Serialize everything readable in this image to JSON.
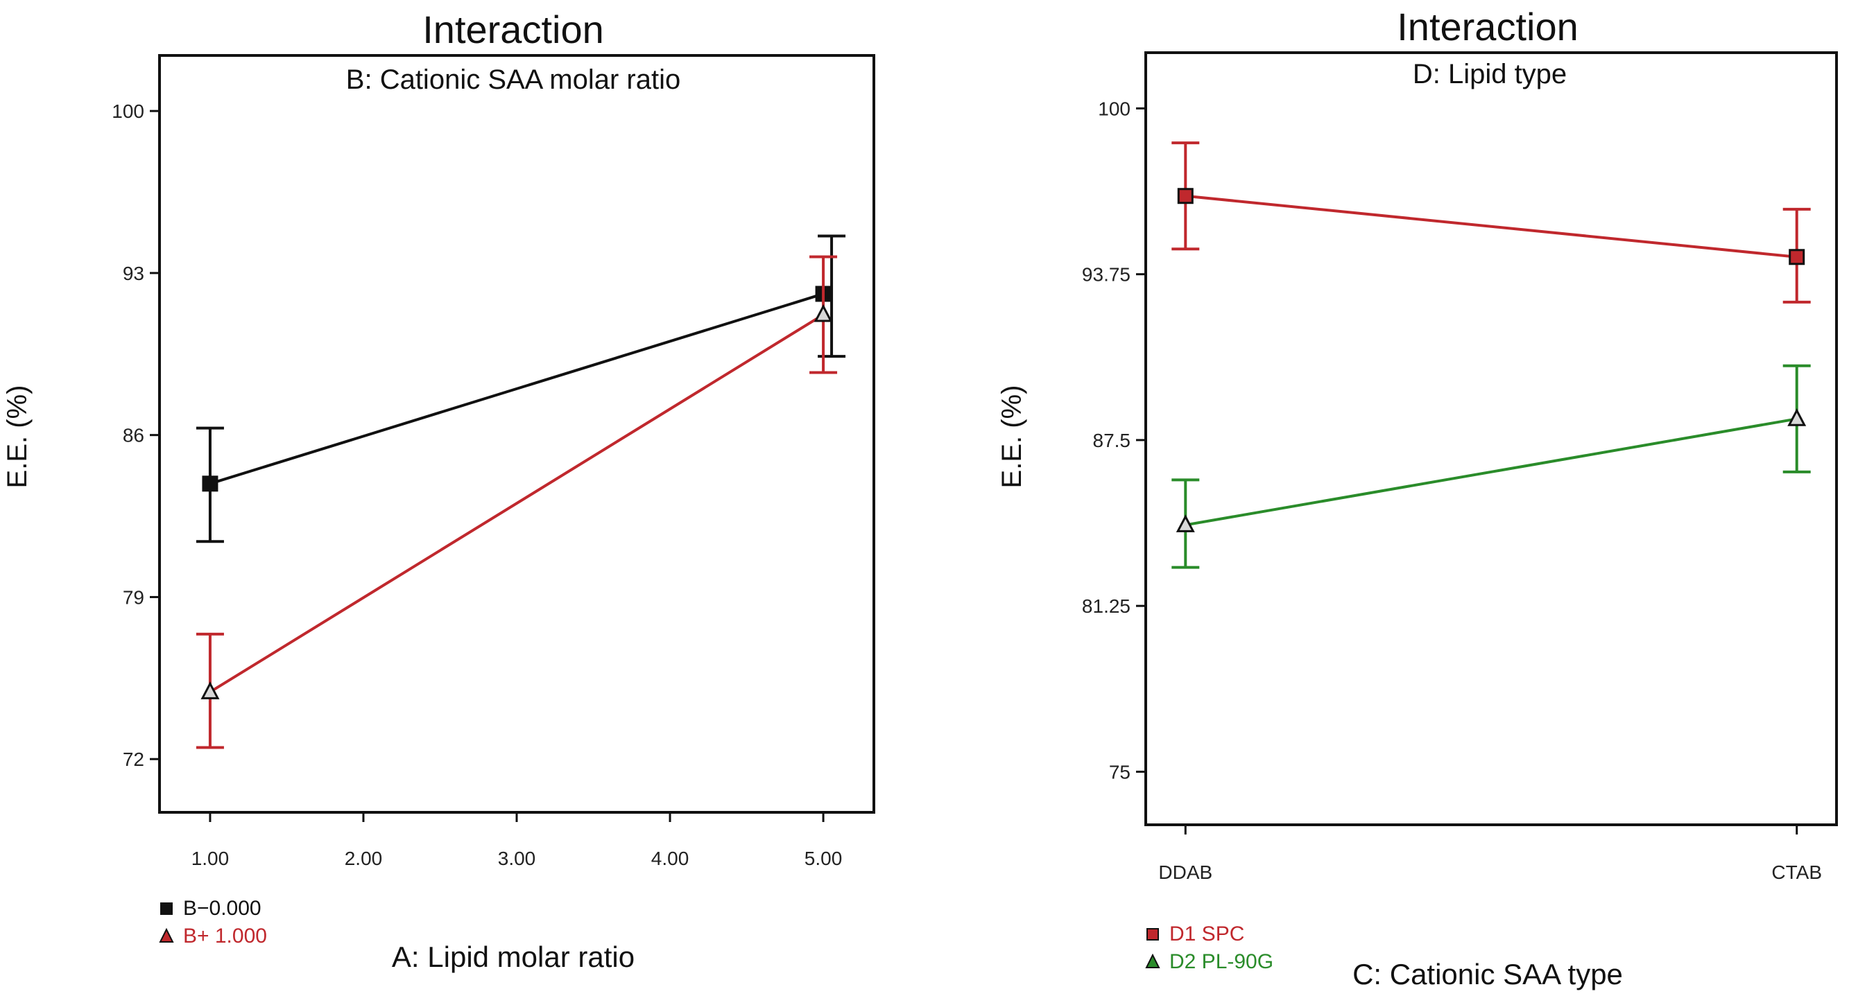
{
  "chart_data": [
    {
      "type": "line",
      "title": "Interaction",
      "subtitle": "B: Cationic SAA molar ratio",
      "xlabel": "A: Lipid molar ratio",
      "ylabel": "E.E. (%)",
      "x_ticks": [
        "1.00",
        "2.00",
        "3.00",
        "4.00",
        "5.00"
      ],
      "xlim": [
        0.67,
        5.33
      ],
      "y_ticks": [
        "100",
        "93",
        "86",
        "79",
        "72"
      ],
      "ylim": [
        69.7,
        102.4
      ],
      "series": [
        {
          "name": "B−0.000",
          "color": "#111111",
          "marker": "square",
          "x": [
            1,
            5
          ],
          "y": [
            83.9,
            92.1
          ],
          "err_low": [
            81.4,
            89.4
          ],
          "err_high": [
            86.3,
            94.6
          ]
        },
        {
          "name": "B+ 1.000",
          "color": "#c0282d",
          "marker": "triangle",
          "x": [
            1,
            5
          ],
          "y": [
            74.9,
            91.2
          ],
          "err_low": [
            72.5,
            88.7
          ],
          "err_high": [
            77.4,
            93.7
          ]
        }
      ]
    },
    {
      "type": "line",
      "title": "Interaction",
      "subtitle": "D: Lipid type",
      "xlabel": "C: Cationic SAA type",
      "ylabel": "E.E. (%)",
      "x_ticks": [
        "DDAB",
        "CTAB"
      ],
      "xlim": [
        -0.065,
        1.065
      ],
      "y_ticks": [
        "100",
        "93.75",
        "87.5",
        "81.25",
        "75"
      ],
      "ylim": [
        73.0,
        102.1
      ],
      "series": [
        {
          "name": "D1 SPC",
          "color": "#c0282d",
          "marker": "square",
          "x": [
            0,
            1
          ],
          "y": [
            96.7,
            94.4
          ],
          "err_low": [
            94.7,
            92.7
          ],
          "err_high": [
            98.7,
            96.2
          ]
        },
        {
          "name": "D2 PL-90G",
          "color": "#2a8c2a",
          "marker": "triangle",
          "x": [
            0,
            1
          ],
          "y": [
            84.3,
            88.3
          ],
          "err_low": [
            82.7,
            86.3
          ],
          "err_high": [
            86.0,
            90.3
          ]
        }
      ]
    }
  ]
}
